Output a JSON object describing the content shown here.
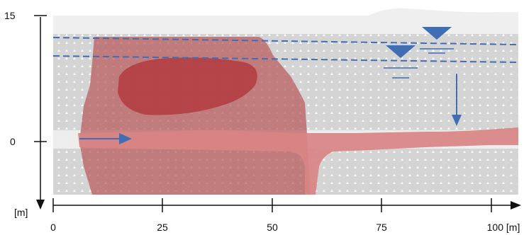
{
  "y_axis": {
    "top_label": "15",
    "zero_label": "0",
    "unit_label": "[m]"
  },
  "x_axis": {
    "tick_labels": [
      "0",
      "25",
      "50",
      "75",
      "100 [m]"
    ]
  },
  "colors": {
    "soil_grey": "#d5d5d5",
    "surface_light": "#efefef",
    "plume_outer": "#b85a5a",
    "plume_core": "#b13b3e",
    "lens_pink": "#d98484",
    "water_blue": "#3f6eb5",
    "axis": "#111111"
  },
  "icons": {
    "flow_arrow": "arrow-right-icon",
    "recharge_arrow": "arrow-down-icon",
    "water_table_symbol": "water-table-triangle-icon"
  }
}
